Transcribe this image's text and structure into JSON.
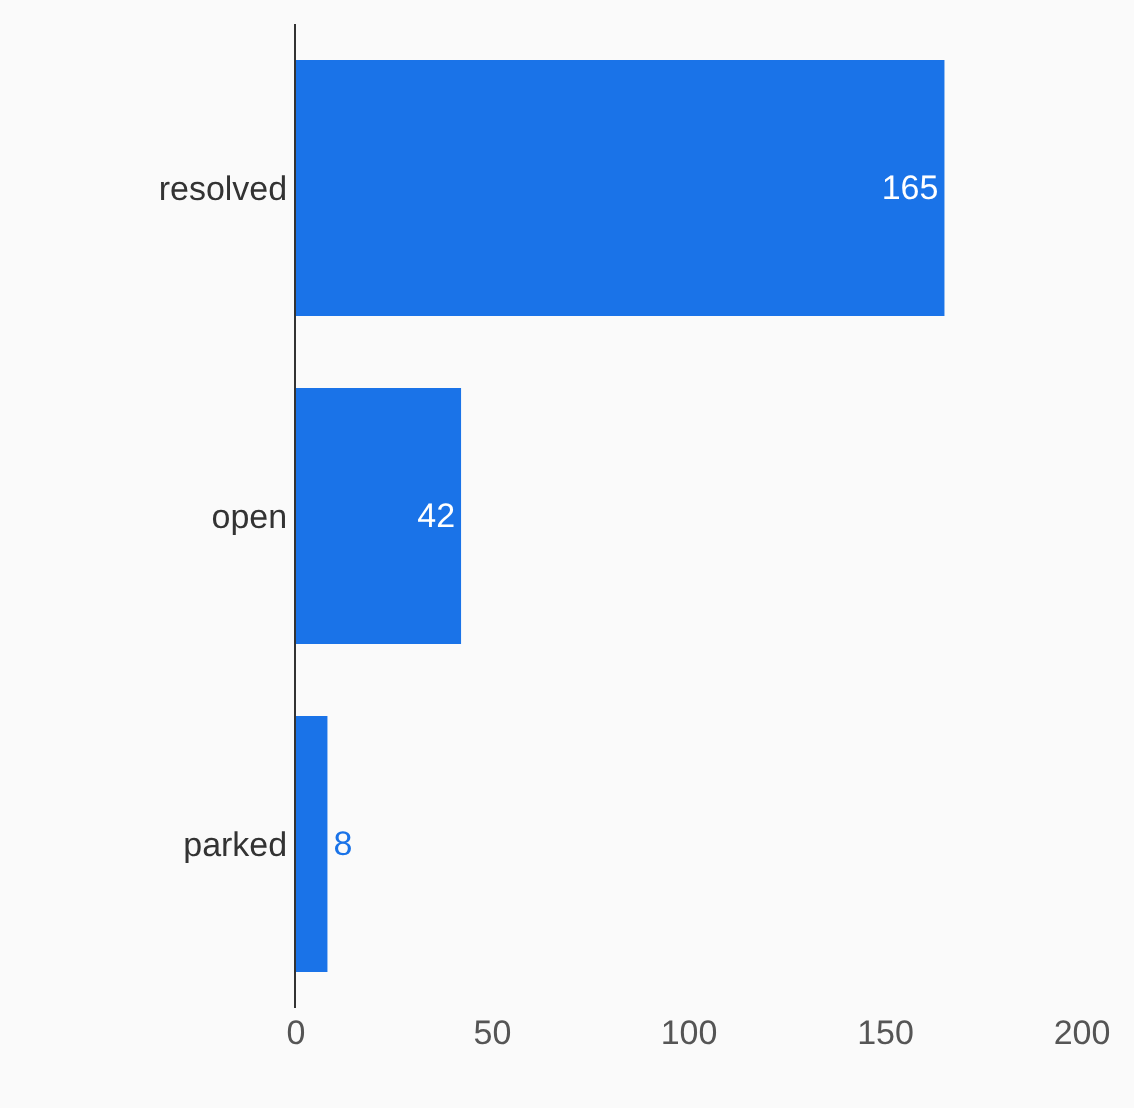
{
  "chart_data": {
    "type": "bar",
    "orientation": "horizontal",
    "categories": [
      "resolved",
      "open",
      "parked"
    ],
    "values": [
      165,
      42,
      8
    ],
    "color": "#1a73e8",
    "xlim": [
      0,
      200
    ],
    "xticks": [
      0,
      50,
      100,
      150,
      200
    ],
    "data_labels": true
  }
}
